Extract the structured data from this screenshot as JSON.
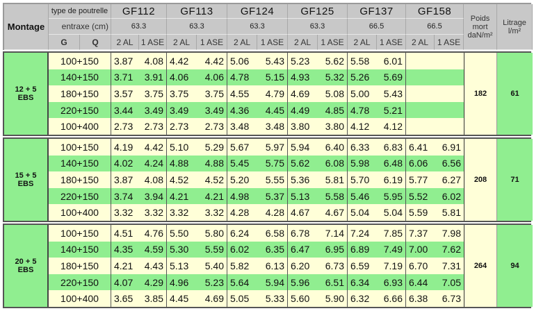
{
  "header": {
    "montage": "Montage",
    "type_label": "type de poutrelle",
    "entraxe_label": "entraxe (cm)",
    "g_label": "G",
    "q_label": "Q",
    "poids_label": "Poids mort daN/m²",
    "litrage_label": "Litrage l/m²",
    "poutrelles": [
      {
        "name": "GF112",
        "entraxe": "63.3",
        "col1": "2 AL",
        "col2": "1 ASE"
      },
      {
        "name": "GF113",
        "entraxe": "63.3",
        "col1": "2 AL",
        "col2": "1 ASE"
      },
      {
        "name": "GF124",
        "entraxe": "63.3",
        "col1": "2 AL",
        "col2": "1 ASE"
      },
      {
        "name": "GF125",
        "entraxe": "63.3",
        "col1": "2 AL",
        "col2": "1 ASE"
      },
      {
        "name": "GF137",
        "entraxe": "66.5",
        "col1": "2 AL",
        "col2": "1 ASE"
      },
      {
        "name": "GF158",
        "entraxe": "66.5",
        "col1": "2 AL",
        "col2": "1 ASE"
      }
    ]
  },
  "sections": [
    {
      "montage": "12 + 5\nEBS",
      "poids": "182",
      "litrage": "61",
      "rows": [
        {
          "gq": "100+150",
          "values": [
            "3.87",
            "4.08",
            "4.42",
            "4.42",
            "5.06",
            "5.43",
            "5.23",
            "5.62",
            "5.58",
            "6.01",
            "",
            ""
          ]
        },
        {
          "gq": "140+150",
          "values": [
            "3.71",
            "3.91",
            "4.06",
            "4.06",
            "4.78",
            "5.15",
            "4.93",
            "5.32",
            "5.26",
            "5.69",
            "",
            ""
          ]
        },
        {
          "gq": "180+150",
          "values": [
            "3.57",
            "3.75",
            "3.75",
            "3.75",
            "4.55",
            "4.79",
            "4.69",
            "5.08",
            "5.00",
            "5.43",
            "",
            ""
          ]
        },
        {
          "gq": "220+150",
          "values": [
            "3.44",
            "3.49",
            "3.49",
            "3.49",
            "4.36",
            "4.45",
            "4.49",
            "4.85",
            "4.78",
            "5.21",
            "",
            ""
          ]
        },
        {
          "gq": "100+400",
          "values": [
            "2.73",
            "2.73",
            "2.73",
            "2.73",
            "3.48",
            "3.48",
            "3.80",
            "3.80",
            "4.12",
            "4.12",
            "",
            ""
          ]
        }
      ]
    },
    {
      "montage": "15 + 5\nEBS",
      "poids": "208",
      "litrage": "71",
      "rows": [
        {
          "gq": "100+150",
          "values": [
            "4.19",
            "4.42",
            "5.10",
            "5.29",
            "5.67",
            "5.97",
            "5.94",
            "6.40",
            "6.33",
            "6.83",
            "6.41",
            "6.91"
          ]
        },
        {
          "gq": "140+150",
          "values": [
            "4.02",
            "4.24",
            "4.88",
            "4.88",
            "5.45",
            "5.75",
            "5.62",
            "6.08",
            "5.98",
            "6.48",
            "6.06",
            "6.56"
          ]
        },
        {
          "gq": "180+150",
          "values": [
            "3.87",
            "4.08",
            "4.52",
            "4.52",
            "5.20",
            "5.55",
            "5.36",
            "5.81",
            "5.70",
            "6.19",
            "5.77",
            "6.27"
          ]
        },
        {
          "gq": "220+150",
          "values": [
            "3.74",
            "3.94",
            "4.21",
            "4.21",
            "4.98",
            "5.37",
            "5.13",
            "5.58",
            "5.46",
            "5.95",
            "5.52",
            "6.02"
          ]
        },
        {
          "gq": "100+400",
          "values": [
            "3.32",
            "3.32",
            "3.32",
            "3.32",
            "4.28",
            "4.28",
            "4.67",
            "4.67",
            "5.04",
            "5.04",
            "5.59",
            "5.81"
          ]
        }
      ]
    },
    {
      "montage": "20 + 5\nEBS",
      "poids": "264",
      "litrage": "94",
      "rows": [
        {
          "gq": "100+150",
          "values": [
            "4.51",
            "4.76",
            "5.50",
            "5.80",
            "6.24",
            "6.58",
            "6.78",
            "7.14",
            "7.24",
            "7.85",
            "7.37",
            "7.98"
          ]
        },
        {
          "gq": "140+150",
          "values": [
            "4.35",
            "4.59",
            "5.30",
            "5.59",
            "6.02",
            "6.35",
            "6.47",
            "6.95",
            "6.89",
            "7.49",
            "7.00",
            "7.62"
          ]
        },
        {
          "gq": "180+150",
          "values": [
            "4.21",
            "4.43",
            "5.13",
            "5.40",
            "5.82",
            "6.13",
            "6.20",
            "6.73",
            "6.59",
            "7.19",
            "6.70",
            "7.31"
          ]
        },
        {
          "gq": "220+150",
          "values": [
            "4.07",
            "4.29",
            "4.96",
            "5.23",
            "5.64",
            "5.94",
            "5.96",
            "6.51",
            "6.34",
            "6.93",
            "6.44",
            "7.05"
          ]
        },
        {
          "gq": "100+400",
          "values": [
            "3.65",
            "3.85",
            "4.45",
            "4.69",
            "5.05",
            "5.33",
            "5.60",
            "5.90",
            "6.32",
            "6.66",
            "6.38",
            "6.73"
          ]
        }
      ]
    }
  ],
  "colors": {
    "row_light": "#ffffd8",
    "row_green": "#90ee90",
    "header": "#c8c8c8"
  }
}
